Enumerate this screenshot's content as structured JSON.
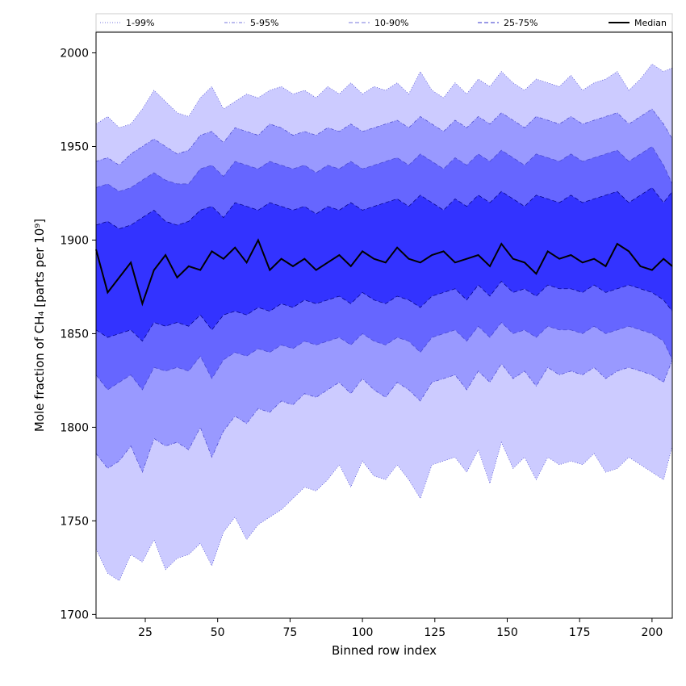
{
  "chart_data": {
    "type": "area",
    "xlabel": "Binned row index",
    "ylabel": "Mole fraction of CH₄ [parts per 10⁹]",
    "xlim": [
      8,
      207
    ],
    "ylim": [
      1698,
      2011
    ],
    "xticks": [
      25,
      50,
      75,
      100,
      125,
      150,
      175,
      200
    ],
    "yticks": [
      1700,
      1750,
      1800,
      1850,
      1900,
      1950,
      2000
    ],
    "grid": false,
    "legend_position": "top",
    "x": [
      8,
      12,
      16,
      20,
      24,
      28,
      32,
      36,
      40,
      44,
      48,
      52,
      56,
      60,
      64,
      68,
      72,
      76,
      80,
      84,
      88,
      92,
      96,
      100,
      104,
      108,
      112,
      116,
      120,
      124,
      128,
      132,
      136,
      140,
      144,
      148,
      152,
      156,
      160,
      164,
      168,
      172,
      176,
      180,
      184,
      188,
      192,
      196,
      200,
      204,
      207
    ],
    "series": [
      {
        "name": "1-99%",
        "style": "dotted",
        "color": "#cccbff",
        "lower": [
          1735,
          1722,
          1718,
          1732,
          1728,
          1740,
          1724,
          1730,
          1732,
          1738,
          1726,
          1744,
          1752,
          1740,
          1748,
          1752,
          1756,
          1762,
          1768,
          1766,
          1772,
          1780,
          1768,
          1782,
          1774,
          1772,
          1780,
          1772,
          1762,
          1780,
          1782,
          1784,
          1776,
          1788,
          1770,
          1792,
          1778,
          1784,
          1772,
          1784,
          1780,
          1782,
          1780,
          1786,
          1776,
          1778,
          1784,
          1780,
          1776,
          1772,
          1790
        ],
        "upper": [
          1962,
          1966,
          1960,
          1962,
          1970,
          1980,
          1974,
          1968,
          1966,
          1976,
          1982,
          1970,
          1974,
          1978,
          1976,
          1980,
          1982,
          1978,
          1980,
          1976,
          1982,
          1978,
          1984,
          1978,
          1982,
          1980,
          1984,
          1978,
          1990,
          1980,
          1976,
          1984,
          1978,
          1986,
          1982,
          1990,
          1984,
          1980,
          1986,
          1984,
          1982,
          1988,
          1980,
          1984,
          1986,
          1990,
          1980,
          1986,
          1994,
          1990,
          1992
        ]
      },
      {
        "name": "5-95%",
        "style": "dashdot",
        "color": "#9999ff",
        "lower": [
          1786,
          1778,
          1782,
          1790,
          1776,
          1794,
          1790,
          1792,
          1788,
          1800,
          1784,
          1798,
          1806,
          1802,
          1810,
          1808,
          1814,
          1812,
          1818,
          1816,
          1820,
          1824,
          1818,
          1826,
          1820,
          1816,
          1824,
          1820,
          1814,
          1824,
          1826,
          1828,
          1820,
          1830,
          1824,
          1834,
          1826,
          1830,
          1822,
          1832,
          1828,
          1830,
          1828,
          1832,
          1826,
          1830,
          1832,
          1830,
          1828,
          1824,
          1836
        ],
        "upper": [
          1942,
          1944,
          1940,
          1946,
          1950,
          1954,
          1950,
          1946,
          1948,
          1956,
          1958,
          1952,
          1960,
          1958,
          1956,
          1962,
          1960,
          1956,
          1958,
          1956,
          1960,
          1958,
          1962,
          1958,
          1960,
          1962,
          1964,
          1960,
          1966,
          1962,
          1958,
          1964,
          1960,
          1966,
          1962,
          1968,
          1964,
          1960,
          1966,
          1964,
          1962,
          1966,
          1962,
          1964,
          1966,
          1968,
          1962,
          1966,
          1970,
          1962,
          1954
        ]
      },
      {
        "name": "10-90%",
        "style": "dashed",
        "color": "#6666ff",
        "lower": [
          1828,
          1820,
          1824,
          1828,
          1820,
          1832,
          1830,
          1832,
          1830,
          1838,
          1826,
          1836,
          1840,
          1838,
          1842,
          1840,
          1844,
          1842,
          1846,
          1844,
          1846,
          1848,
          1844,
          1850,
          1846,
          1844,
          1848,
          1846,
          1840,
          1848,
          1850,
          1852,
          1846,
          1854,
          1848,
          1856,
          1850,
          1852,
          1848,
          1854,
          1852,
          1852,
          1850,
          1854,
          1850,
          1852,
          1854,
          1852,
          1850,
          1846,
          1836
        ],
        "upper": [
          1928,
          1930,
          1926,
          1928,
          1932,
          1936,
          1932,
          1930,
          1930,
          1938,
          1940,
          1934,
          1942,
          1940,
          1938,
          1942,
          1940,
          1938,
          1940,
          1936,
          1940,
          1938,
          1942,
          1938,
          1940,
          1942,
          1944,
          1940,
          1946,
          1942,
          1938,
          1944,
          1940,
          1946,
          1942,
          1948,
          1944,
          1940,
          1946,
          1944,
          1942,
          1946,
          1942,
          1944,
          1946,
          1948,
          1942,
          1946,
          1950,
          1940,
          1930
        ]
      },
      {
        "name": "25-75%",
        "style": "dashed",
        "color": "#3333ff",
        "lower": [
          1852,
          1848,
          1850,
          1852,
          1846,
          1856,
          1854,
          1856,
          1854,
          1860,
          1852,
          1860,
          1862,
          1860,
          1864,
          1862,
          1866,
          1864,
          1868,
          1866,
          1868,
          1870,
          1866,
          1872,
          1868,
          1866,
          1870,
          1868,
          1864,
          1870,
          1872,
          1874,
          1868,
          1876,
          1870,
          1878,
          1872,
          1874,
          1870,
          1876,
          1874,
          1874,
          1872,
          1876,
          1872,
          1874,
          1876,
          1874,
          1872,
          1868,
          1862
        ],
        "upper": [
          1908,
          1910,
          1906,
          1908,
          1912,
          1916,
          1910,
          1908,
          1910,
          1916,
          1918,
          1912,
          1920,
          1918,
          1916,
          1920,
          1918,
          1916,
          1918,
          1914,
          1918,
          1916,
          1920,
          1916,
          1918,
          1920,
          1922,
          1918,
          1924,
          1920,
          1916,
          1922,
          1918,
          1924,
          1920,
          1926,
          1922,
          1918,
          1924,
          1922,
          1920,
          1924,
          1920,
          1922,
          1924,
          1926,
          1920,
          1924,
          1928,
          1920,
          1926
        ]
      }
    ],
    "median": {
      "name": "Median",
      "color": "#000000",
      "values": [
        1895,
        1872,
        1880,
        1888,
        1866,
        1884,
        1892,
        1880,
        1886,
        1884,
        1894,
        1890,
        1896,
        1888,
        1900,
        1884,
        1890,
        1886,
        1890,
        1884,
        1888,
        1892,
        1886,
        1894,
        1890,
        1888,
        1896,
        1890,
        1888,
        1892,
        1894,
        1888,
        1890,
        1892,
        1886,
        1898,
        1890,
        1888,
        1882,
        1894,
        1890,
        1892,
        1888,
        1890,
        1886,
        1898,
        1894,
        1886,
        1884,
        1890,
        1886
      ]
    }
  }
}
